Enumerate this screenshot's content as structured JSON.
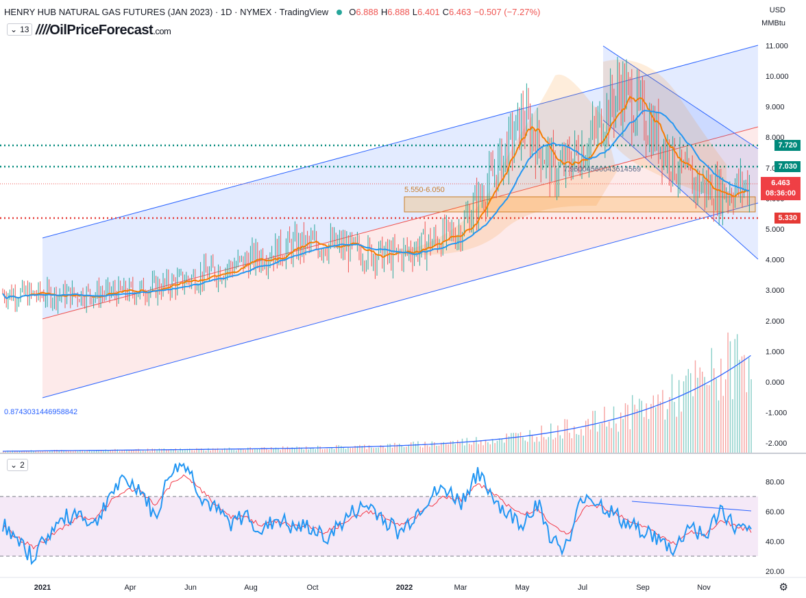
{
  "header": {
    "title": "HENRY HUB NATURAL GAS FUTURES (JAN 2023) · 1D · NYMEX · TradingView",
    "open_label": "O",
    "open": "6.888",
    "high_label": "H",
    "high": "6.888",
    "low_label": "L",
    "low": "6.401",
    "close_label": "C",
    "close": "6.463",
    "change": "−0.507 (−7.27%)",
    "indicator_count": "13",
    "logo_text": "OilPriceForecast",
    "logo_suffix": ".com"
  },
  "axis_right": {
    "currency": "USD",
    "unit": "MMBtu"
  },
  "rsi_panel": {
    "indicator_count": "2"
  },
  "price_tags": {
    "r7720": "7.720",
    "r7030": "7.030",
    "s5330": "5.330",
    "last_price": "6.463",
    "countdown": "08:36:00"
  },
  "annotations": {
    "zone_label": "5.550-6.050",
    "line_value": "0.8743031446958842",
    "overlap_text": "7.96004560043614569"
  },
  "colors": {
    "up": "#26a69a",
    "down": "#ef5350",
    "blue_line": "#2962ff",
    "orange_ma": "#f57c00",
    "blue_ma": "#2196f3",
    "rsi": "#2196f3",
    "rsi_ma": "#f23645"
  },
  "chart_data": [
    {
      "type": "line",
      "title": "HENRY HUB NATURAL GAS FUTURES (JAN 2023) · 1D · NYMEX · TradingView",
      "x_ticks": [
        "2021",
        "Apr",
        "Jun",
        "Aug",
        "Oct",
        "2022",
        "Mar",
        "May",
        "Jul",
        "Sep",
        "Nov"
      ],
      "y_ticks": [
        "11.000",
        "10.000",
        "9.000",
        "8.000",
        "7.000",
        "6.000",
        "5.000",
        "4.000",
        "3.000",
        "2.000",
        "1.000",
        "0.000",
        "-1.000",
        "-2.000"
      ],
      "ylim": [
        -2.3,
        11.5
      ],
      "series": [
        {
          "x": [
            "2021-01",
            "2021-02",
            "2021-03",
            "2021-04",
            "2021-05",
            "2021-06",
            "2021-07",
            "2021-08",
            "2021-09",
            "2021-10",
            "2021-11",
            "2021-12",
            "2022-01",
            "2022-02",
            "2022-03",
            "2022-04",
            "2022-05",
            "2022-06",
            "2022-07",
            "2022-08",
            "2022-09",
            "2022-10",
            "2022-11",
            "2022-12"
          ],
          "values": [
            2.9,
            2.85,
            2.85,
            2.88,
            2.95,
            3.15,
            3.45,
            3.75,
            4.15,
            4.45,
            4.5,
            4.25,
            4.1,
            4.5,
            4.9,
            6.6,
            8.6,
            6.8,
            7.8,
            9.6,
            8.2,
            6.6,
            6.2,
            6.46
          ]
        }
      ],
      "levels": [
        7.72,
        7.03,
        5.33
      ],
      "zone": [
        5.55,
        6.05
      ],
      "grid": false
    },
    {
      "type": "line",
      "x_ticks": [
        "2021",
        "Apr",
        "Jun",
        "Aug",
        "Oct",
        "2022",
        "Mar",
        "May",
        "Jul",
        "Sep",
        "Nov"
      ],
      "y_ticks": [
        "80.00",
        "60.00",
        "40.00",
        "20.00"
      ],
      "ylim": [
        20,
        95
      ],
      "band": [
        30,
        70
      ],
      "series": [
        {
          "values": [
            52,
            38,
            30,
            45,
            55,
            60,
            50,
            72,
            80,
            76,
            55,
            88,
            92,
            70,
            60,
            52,
            58,
            46,
            56,
            48,
            50,
            42,
            50,
            60,
            64,
            55,
            45,
            58,
            70,
            75,
            66,
            85,
            72,
            58,
            52,
            66,
            40,
            36,
            72,
            66,
            58,
            50,
            48,
            40,
            34,
            52,
            42,
            62,
            48,
            45
          ]
        },
        {
          "values": [
            50,
            42,
            36,
            42,
            50,
            56,
            54,
            66,
            74,
            74,
            64,
            78,
            84,
            74,
            64,
            56,
            56,
            50,
            54,
            50,
            50,
            46,
            50,
            56,
            60,
            56,
            50,
            56,
            64,
            70,
            68,
            78,
            74,
            64,
            58,
            62,
            50,
            44,
            62,
            64,
            60,
            54,
            50,
            44,
            38,
            46,
            44,
            54,
            50,
            47
          ]
        }
      ],
      "grid": false
    }
  ]
}
